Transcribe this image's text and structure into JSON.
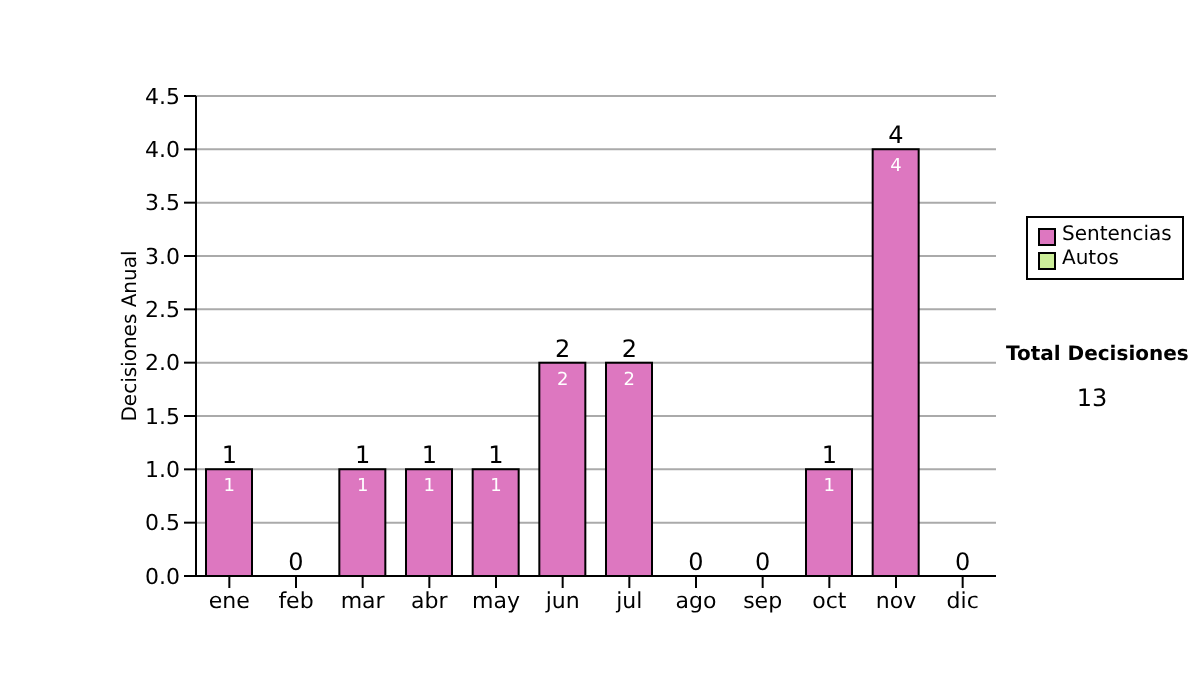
{
  "chart_data": {
    "type": "bar",
    "stacked": true,
    "ylabel": "Decisiones Anual",
    "categories": [
      "ene",
      "feb",
      "mar",
      "abr",
      "may",
      "jun",
      "jul",
      "ago",
      "sep",
      "oct",
      "nov",
      "dic"
    ],
    "series": [
      {
        "name": "Sentencias",
        "color": "#dd77c0",
        "values": [
          1,
          0,
          1,
          1,
          1,
          2,
          2,
          0,
          0,
          1,
          4,
          0
        ],
        "value_labels": [
          "1",
          null,
          "1",
          "1",
          "1",
          "2",
          "2",
          null,
          null,
          "1",
          "4",
          null
        ]
      },
      {
        "name": "Autos",
        "color": "#ccee99",
        "values": [
          0,
          0,
          0,
          0,
          0,
          0,
          0,
          0,
          0,
          0,
          0,
          0
        ]
      }
    ],
    "totals": [
      "1",
      "0",
      "1",
      "1",
      "1",
      "2",
      "2",
      "0",
      "0",
      "1",
      "4",
      "0"
    ],
    "ylim": [
      0,
      4.5
    ],
    "yticks": [
      {
        "value": 0,
        "label": "0.0"
      },
      {
        "value": 0.5,
        "label": "0.5"
      },
      {
        "value": 1,
        "label": "1.0"
      },
      {
        "value": 1.5,
        "label": "1.5"
      },
      {
        "value": 2,
        "label": "2.0"
      },
      {
        "value": 2.5,
        "label": "2.5"
      },
      {
        "value": 3,
        "label": "3.0"
      },
      {
        "value": 3.5,
        "label": "3.5"
      },
      {
        "value": 4,
        "label": "4.0"
      },
      {
        "value": 4.5,
        "label": "4.5"
      }
    ],
    "grid": "y",
    "legend": "right",
    "annotations": [
      "Total Decisiones",
      "13"
    ]
  }
}
